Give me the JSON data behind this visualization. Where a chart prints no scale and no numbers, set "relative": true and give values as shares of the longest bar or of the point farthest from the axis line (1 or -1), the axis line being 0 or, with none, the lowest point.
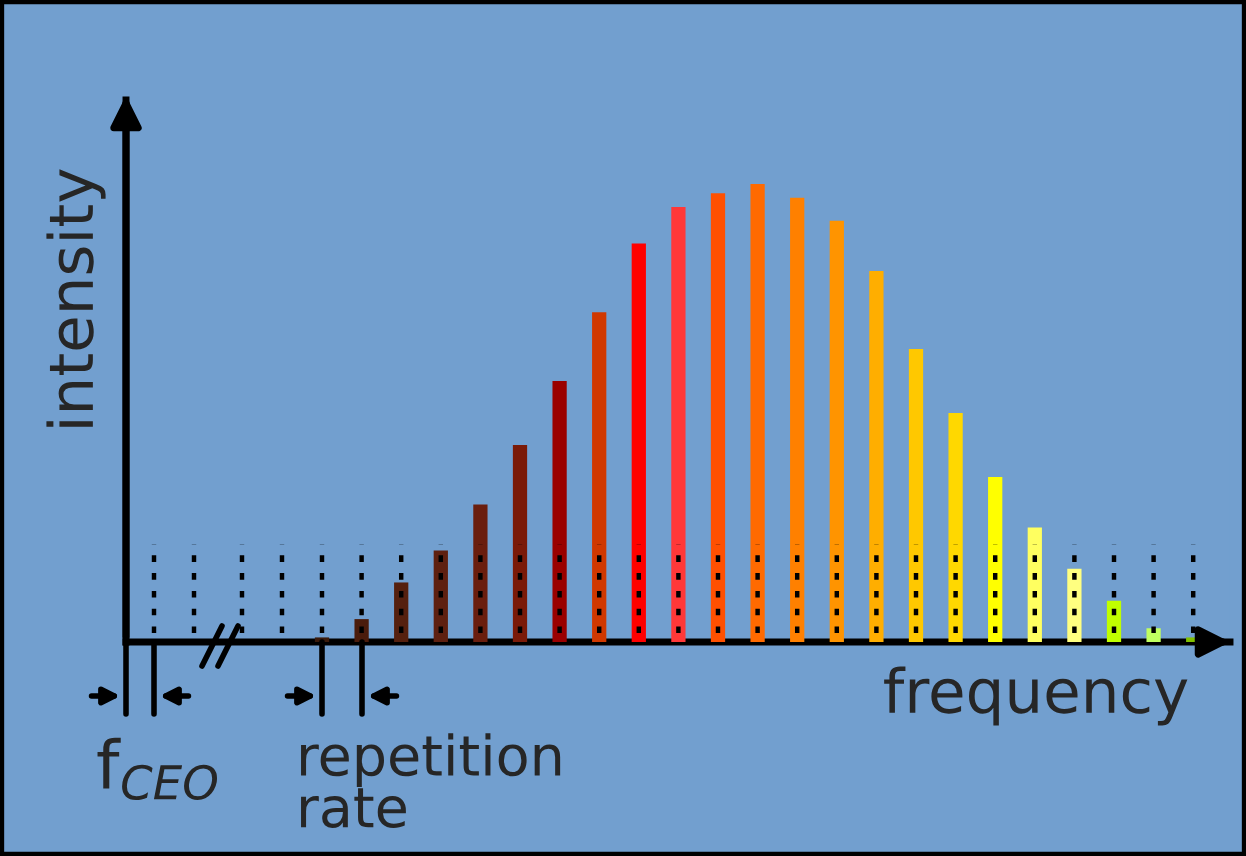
{
  "chart_data": {
    "type": "bar",
    "relative": true,
    "xlabel": "frequency",
    "ylabel": "intensity",
    "categories": [
      null,
      null,
      null,
      null,
      null,
      null,
      null,
      null,
      null,
      null,
      null,
      null,
      null,
      null,
      null,
      null,
      null,
      null,
      null,
      null,
      null,
      null,
      null
    ],
    "values": [
      0.01,
      0.05,
      0.13,
      0.2,
      0.3,
      0.43,
      0.57,
      0.72,
      0.87,
      0.95,
      0.98,
      1,
      0.97,
      0.92,
      0.81,
      0.64,
      0.5,
      0.36,
      0.25,
      0.16,
      0.09,
      0.03,
      0.01
    ],
    "colors": [
      "#3a1a0a",
      "#4a1c0c",
      "#55200e",
      "#5e2010",
      "#6a1e0e",
      "#7a1a08",
      "#9a0000",
      "#d03800",
      "#ff0000",
      "#ff3838",
      "#ff5000",
      "#ff6a00",
      "#ff8000",
      "#ff9400",
      "#ffae00",
      "#ffc800",
      "#ffd800",
      "#ffff00",
      "#ffff60",
      "#ffff80",
      "#c0ff00",
      "#c0ff60",
      "#80c000"
    ],
    "annotations": [
      "f$_{CEO}$",
      "repetition rate"
    ],
    "grid": false
  }
}
